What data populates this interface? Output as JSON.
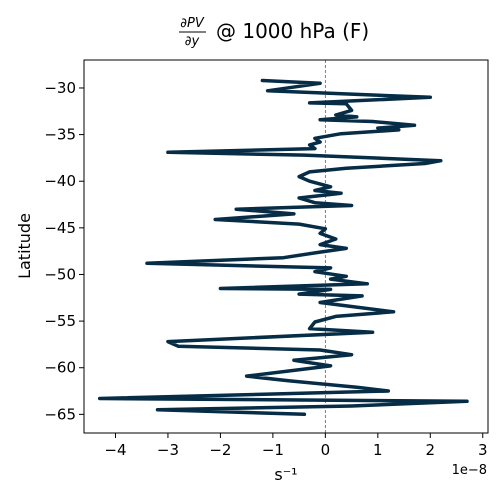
{
  "chart_data": {
    "type": "line",
    "title": "∂PV/∂y @ 1000 hPa (F)",
    "title_fraction": {
      "numerator": "∂PV",
      "denominator": "∂y"
    },
    "title_suffix": "@ 1000 hPa (F)",
    "xlabel": "s⁻¹",
    "ylabel": "Latitude",
    "x_offset_label": "1e−8",
    "x_scale": 1e-08,
    "xlim": [
      -4.6,
      3.1
    ],
    "ylim": [
      -67,
      -27
    ],
    "x_ticks": [
      -4,
      -3,
      -2,
      -1,
      0,
      1,
      2,
      3
    ],
    "x_tick_labels": [
      "−4",
      "−3",
      "−2",
      "−1",
      "0",
      "1",
      "2",
      "3"
    ],
    "y_ticks": [
      -30,
      -35,
      -40,
      -45,
      -50,
      -55,
      -60,
      -65
    ],
    "y_tick_labels": [
      "−30",
      "−35",
      "−40",
      "−45",
      "−50",
      "−55",
      "−60",
      "−65"
    ],
    "grid": false,
    "reference_line": {
      "x": 0,
      "style": "dashed",
      "color": "#b0306a"
    },
    "series": [
      {
        "color": "#062c46",
        "points": [
          [
            -1.2,
            -29.2
          ],
          [
            -0.1,
            -29.5
          ],
          [
            -1.1,
            -30.3
          ],
          [
            2.0,
            -31.0
          ],
          [
            -0.3,
            -31.6
          ],
          [
            0.4,
            -31.7
          ],
          [
            0.5,
            -32.4
          ],
          [
            0.2,
            -32.9
          ],
          [
            0.6,
            -33.1
          ],
          [
            -0.1,
            -33.4
          ],
          [
            0.9,
            -33.6
          ],
          [
            1.7,
            -34.0
          ],
          [
            1.0,
            -34.3
          ],
          [
            1.4,
            -34.5
          ],
          [
            0.3,
            -34.9
          ],
          [
            -0.2,
            -35.4
          ],
          [
            -0.1,
            -35.8
          ],
          [
            -0.3,
            -36.1
          ],
          [
            -0.2,
            -36.5
          ],
          [
            -3.0,
            -36.9
          ],
          [
            -0.4,
            -37.2
          ],
          [
            2.2,
            -37.8
          ],
          [
            1.9,
            -38.1
          ],
          [
            0.4,
            -38.6
          ],
          [
            -0.3,
            -39.0
          ],
          [
            -0.5,
            -39.5
          ],
          [
            -0.3,
            -40.0
          ],
          [
            0.1,
            -40.6
          ],
          [
            -0.2,
            -41.0
          ],
          [
            0.3,
            -41.3
          ],
          [
            -0.5,
            -41.8
          ],
          [
            -0.2,
            -42.3
          ],
          [
            0.5,
            -42.6
          ],
          [
            -1.7,
            -43.0
          ],
          [
            -0.6,
            -43.5
          ],
          [
            -2.1,
            -44.1
          ],
          [
            -0.5,
            -44.6
          ],
          [
            0.0,
            -45.1
          ],
          [
            -0.1,
            -45.6
          ],
          [
            0.2,
            -46.2
          ],
          [
            -0.1,
            -46.8
          ],
          [
            0.4,
            -47.2
          ],
          [
            -0.1,
            -47.6
          ],
          [
            -0.8,
            -48.2
          ],
          [
            -3.4,
            -48.8
          ],
          [
            0.1,
            -49.3
          ],
          [
            -0.2,
            -49.7
          ],
          [
            0.4,
            -50.2
          ],
          [
            0.1,
            -50.5
          ],
          [
            0.8,
            -51.0
          ],
          [
            -2.0,
            -51.5
          ],
          [
            0.1,
            -51.6
          ],
          [
            -0.5,
            -52.1
          ],
          [
            0.7,
            -52.3
          ],
          [
            -0.1,
            -53.0
          ],
          [
            1.3,
            -54.0
          ],
          [
            0.2,
            -54.5
          ],
          [
            -0.2,
            -55.1
          ],
          [
            -0.3,
            -55.8
          ],
          [
            0.9,
            -56.2
          ],
          [
            -3.0,
            -57.2
          ],
          [
            -2.8,
            -57.7
          ],
          [
            -0.1,
            -58.1
          ],
          [
            0.5,
            -58.6
          ],
          [
            -0.6,
            -59.2
          ],
          [
            0.1,
            -59.8
          ],
          [
            -1.5,
            -60.9
          ],
          [
            -0.7,
            -61.4
          ],
          [
            0.6,
            -62.1
          ],
          [
            1.2,
            -62.5
          ],
          [
            -4.3,
            -63.3
          ],
          [
            2.7,
            -63.6
          ],
          [
            0.5,
            -64.1
          ],
          [
            -3.2,
            -64.5
          ],
          [
            -0.4,
            -65.0
          ]
        ]
      }
    ]
  }
}
